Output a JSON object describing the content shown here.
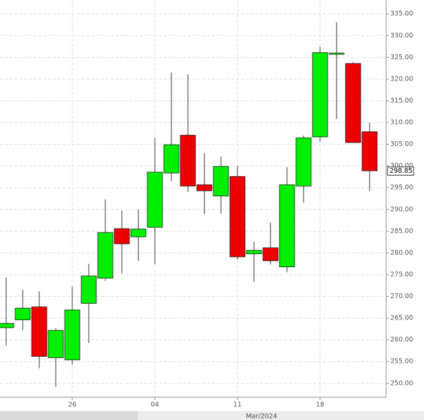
{
  "chart_data": {
    "type": "candlestick",
    "categories": [
      null,
      null,
      null,
      null,
      "26",
      null,
      null,
      null,
      null,
      "04",
      null,
      null,
      null,
      null,
      "11",
      null,
      null,
      null,
      null,
      "18",
      null,
      null,
      null
    ],
    "open": [
      262.8,
      264.6,
      267.6,
      255.9,
      255.4,
      268.4,
      274.2,
      285.6,
      283.7,
      285.9,
      298.4,
      307.1,
      295.7,
      293.1,
      297.6,
      279.8,
      281.2,
      276.8,
      295.4,
      306.7,
      325.7,
      323.6,
      307.9
    ],
    "high": [
      274.4,
      271.5,
      271.2,
      262.7,
      272.2,
      277.5,
      292.3,
      289.7,
      290.0,
      306.5,
      321.5,
      321.1,
      303.0,
      302.2,
      300.0,
      282.6,
      287.0,
      299.7,
      307.0,
      327.4,
      333.1,
      323.9,
      310.0
    ],
    "low": [
      258.7,
      262.2,
      253.5,
      249.2,
      254.3,
      259.3,
      273.6,
      275.3,
      278.2,
      277.4,
      296.5,
      294.0,
      288.9,
      289.1,
      278.5,
      273.3,
      277.4,
      275.6,
      291.6,
      305.6,
      310.8,
      305.4,
      294.3
    ],
    "close": [
      263.8,
      267.3,
      256.2,
      262.2,
      266.9,
      274.7,
      284.7,
      282.1,
      285.5,
      298.6,
      304.9,
      295.4,
      294.3,
      299.9,
      279.1,
      280.6,
      278.2,
      295.7,
      306.5,
      326.1,
      326.0,
      305.4,
      298.9
    ],
    "up_color": "#00ee00",
    "down_color": "#ee0000",
    "ylim": [
      246.8,
      338.2
    ],
    "yticks": [
      {
        "value": 250,
        "label": "250.00"
      },
      {
        "value": 255,
        "label": "255.00"
      },
      {
        "value": 260,
        "label": "260.00"
      },
      {
        "value": 265,
        "label": "265.00"
      },
      {
        "value": 270,
        "label": "270.00"
      },
      {
        "value": 275,
        "label": "275.00"
      },
      {
        "value": 280,
        "label": "280.00"
      },
      {
        "value": 285,
        "label": "285.00"
      },
      {
        "value": 290,
        "label": "290.00"
      },
      {
        "value": 295,
        "label": "295.00"
      },
      {
        "value": 300,
        "label": "300.00"
      },
      {
        "value": 305,
        "label": "305.00"
      },
      {
        "value": 310,
        "label": "310.00"
      },
      {
        "value": 315,
        "label": "315.00"
      },
      {
        "value": 320,
        "label": "320.00"
      },
      {
        "value": 325,
        "label": "325.00"
      },
      {
        "value": 330,
        "label": "330.00"
      },
      {
        "value": 335,
        "label": "335.00"
      }
    ],
    "last_price": 298.85,
    "period_label": "Mar/2024",
    "grid": true
  }
}
